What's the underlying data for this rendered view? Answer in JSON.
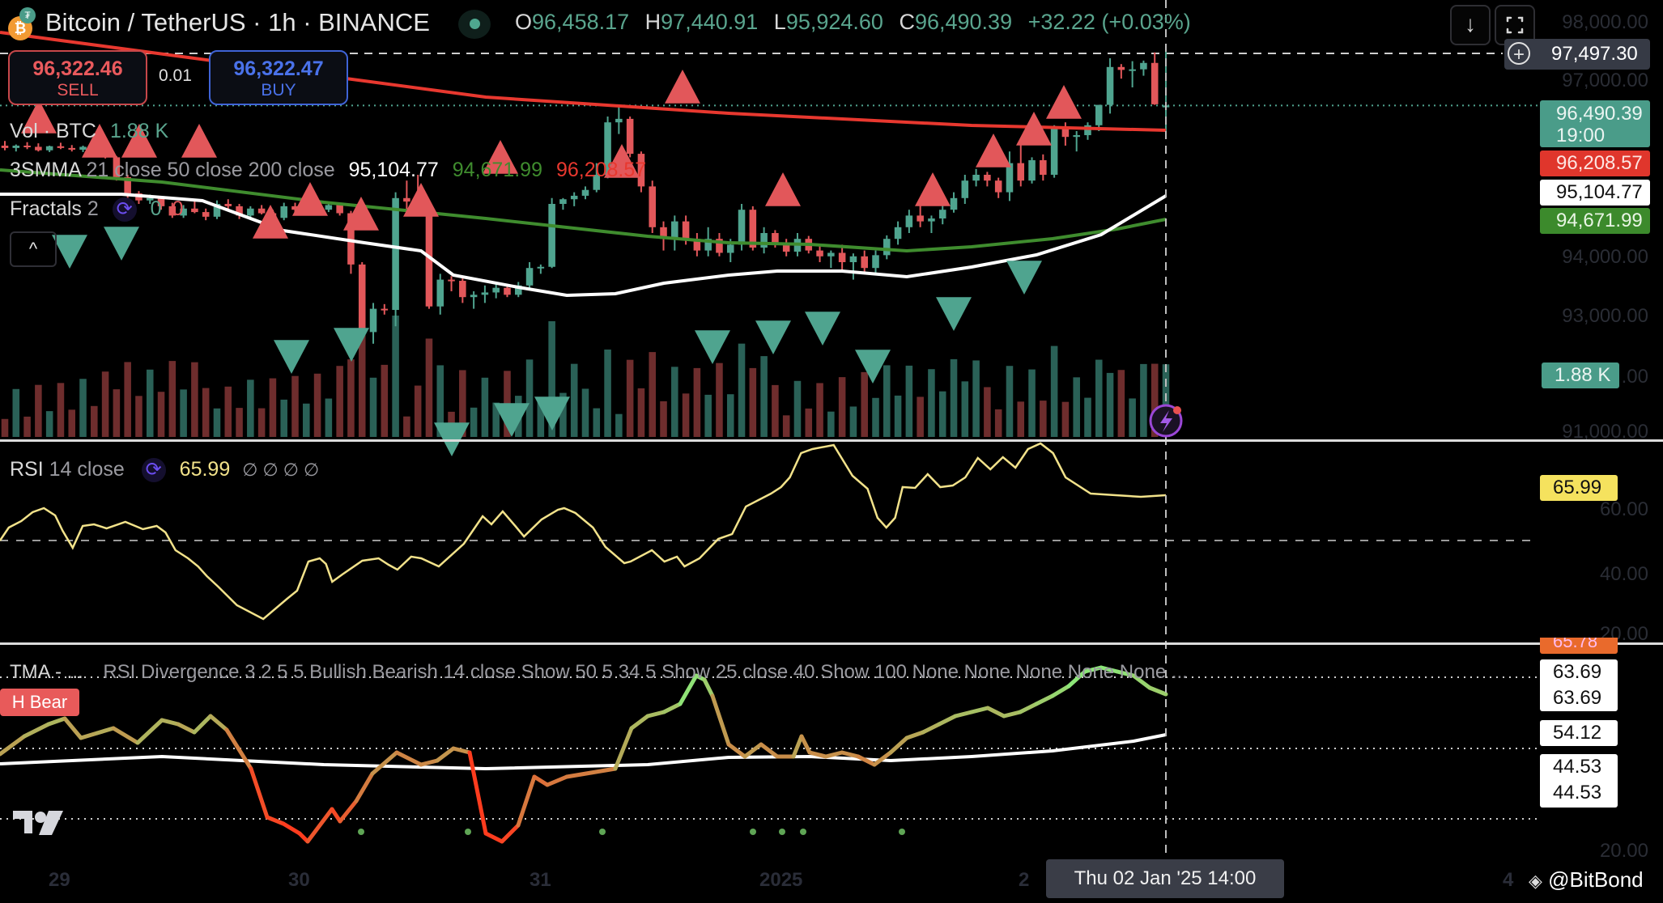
{
  "header": {
    "symbol_title": "Bitcoin / TetherUS · 1h · BINANCE",
    "base_icon": "bitcoin-icon",
    "quote_icon": "tether-icon",
    "market_status": "open",
    "ohlc": {
      "o_label": "O",
      "o": "96,458.17",
      "h_label": "H",
      "h": "97,440.91",
      "l_label": "L",
      "l": "95,924.60",
      "c_label": "C",
      "c": "96,490.39",
      "change": "+32.22 (+0.03%)"
    },
    "buttons": {
      "download_icon": "↓",
      "fullscreen_icon": "⛶"
    }
  },
  "trade": {
    "sell_price": "96,322.46",
    "sell_label": "SELL",
    "spread": "0.01",
    "buy_price": "96,322.47",
    "buy_label": "BUY"
  },
  "legends": {
    "volume": {
      "name": "Vol · BTC",
      "value": "1.88 K"
    },
    "smma": {
      "name": "3SMMA",
      "params": "21 close 50 close 200 close",
      "v1": "95,104.77",
      "v2": "94,671.99",
      "v3": "96,208.57"
    },
    "fractals": {
      "name": "Fractals",
      "param": "2",
      "v1": "0",
      "v2": "0"
    },
    "collapse": "^",
    "rsi": {
      "name": "RSI",
      "params": "14 close",
      "value": "65.99",
      "nulls": "∅ ∅ ∅ ∅"
    },
    "divergence": {
      "name": "TMA - ...",
      "params": "RSI Divergence 3 2 5 5 Bullish Bearish 14 close Show 50 5 34 5 Show 25 close 40 Show 100 None None None None None ..."
    }
  },
  "price_axis": {
    "ticks": [
      "98,000.00",
      "97,000.00",
      "94,000.00",
      "93,000.00",
      "91,000.00"
    ],
    "crosshair_price": "97,497.30",
    "last_price": "96,490.39",
    "countdown": "19:00",
    "smma200_tag": "96,208.57",
    "smma21_tag": "95,104.77",
    "smma50_tag": "94,671.99",
    "volume_tag": "1.88 K",
    "volume_tick_tail": ".00"
  },
  "rsi_axis": {
    "value_tag": "65.99",
    "ticks": [
      "60.00",
      "40.00",
      "20.00"
    ]
  },
  "div_axis": {
    "tags": [
      "65.78",
      "63.69",
      "63.69",
      "54.12",
      "44.53",
      "44.53"
    ],
    "ticks": [
      "20.00"
    ],
    "label": "H Bear"
  },
  "time_axis": {
    "labels": [
      "29",
      "30",
      "31",
      "2025",
      "2",
      "4"
    ],
    "crosshair_time": "Thu 02 Jan '25   14:00"
  },
  "watermark": "@BitBond",
  "colors": {
    "up": "#4fa48f",
    "down": "#e2575a",
    "smma21": "#ffffff",
    "smma50": "#3f8c2e",
    "smma200": "#e8382f",
    "rsi": "#f2e28a",
    "accent_purple": "#6b4df0"
  },
  "chart_data": {
    "type": "candlestick",
    "title": "Bitcoin / TetherUS · 1h · BINANCE",
    "ylim": [
      90800,
      98300
    ],
    "candles": [
      [
        95800,
        95880,
        95720,
        95760
      ],
      [
        95760,
        95820,
        95700,
        95800
      ],
      [
        95800,
        95860,
        95740,
        95780
      ],
      [
        95780,
        95840,
        95700,
        95720
      ],
      [
        95720,
        95800,
        95690,
        95790
      ],
      [
        95790,
        95850,
        95740,
        95760
      ],
      [
        95760,
        95810,
        95700,
        95730
      ],
      [
        95730,
        95800,
        95690,
        95780
      ],
      [
        95780,
        95830,
        95720,
        95740
      ],
      [
        95740,
        95760,
        95580,
        95600
      ],
      [
        95600,
        95620,
        95200,
        95260
      ],
      [
        95260,
        95300,
        94900,
        94980
      ],
      [
        94980,
        95020,
        94800,
        94860
      ],
      [
        94860,
        94960,
        94800,
        94900
      ],
      [
        94900,
        94920,
        94700,
        94760
      ],
      [
        94760,
        94820,
        94560,
        94600
      ],
      [
        94600,
        94780,
        94560,
        94720
      ],
      [
        94720,
        94860,
        94640,
        94660
      ],
      [
        94660,
        94720,
        94520,
        94580
      ],
      [
        94580,
        94860,
        94540,
        94800
      ],
      [
        94800,
        94880,
        94700,
        94760
      ],
      [
        94760,
        94800,
        94540,
        94600
      ],
      [
        94600,
        94760,
        94560,
        94720
      ],
      [
        94720,
        94780,
        94620,
        94640
      ],
      [
        94640,
        94700,
        94520,
        94560
      ],
      [
        94560,
        94820,
        94520,
        94760
      ],
      [
        94760,
        94820,
        94640,
        94700
      ],
      [
        94700,
        94780,
        94640,
        94740
      ],
      [
        94740,
        94800,
        94660,
        94700
      ],
      [
        94700,
        94820,
        94660,
        94780
      ],
      [
        94780,
        94800,
        94600,
        94640
      ],
      [
        94640,
        94680,
        93600,
        93760
      ],
      [
        93760,
        93800,
        92500,
        92600
      ],
      [
        92600,
        93100,
        92400,
        93000
      ],
      [
        93000,
        93080,
        92900,
        92980
      ],
      [
        92980,
        95000,
        92700,
        94900
      ],
      [
        94900,
        95200,
        94600,
        94840
      ],
      [
        94840,
        95300,
        94700,
        94760
      ],
      [
        94760,
        94800,
        93000,
        93040
      ],
      [
        93040,
        93600,
        92900,
        93500
      ],
      [
        93500,
        93560,
        93300,
        93480
      ],
      [
        93480,
        93520,
        93100,
        93200
      ],
      [
        93200,
        93300,
        93000,
        93240
      ],
      [
        93240,
        93400,
        93100,
        93280
      ],
      [
        93280,
        93420,
        93180,
        93360
      ],
      [
        93360,
        93400,
        93200,
        93240
      ],
      [
        93240,
        93460,
        93200,
        93400
      ],
      [
        93400,
        93800,
        93360,
        93700
      ],
      [
        93700,
        93760,
        93600,
        93720
      ],
      [
        93720,
        94900,
        93700,
        94800
      ],
      [
        94800,
        94900,
        94700,
        94880
      ],
      [
        94880,
        95000,
        94760,
        94940
      ],
      [
        94940,
        95100,
        94880,
        95040
      ],
      [
        95040,
        95500,
        95000,
        95300
      ],
      [
        95300,
        96300,
        95240,
        96200
      ],
      [
        96200,
        96500,
        96000,
        96260
      ],
      [
        96260,
        96300,
        95600,
        95660
      ],
      [
        95660,
        95700,
        95000,
        95100
      ],
      [
        95100,
        95200,
        94300,
        94400
      ],
      [
        94400,
        94500,
        94000,
        94200
      ],
      [
        94200,
        94600,
        94000,
        94500
      ],
      [
        94500,
        94600,
        94100,
        94200
      ],
      [
        94200,
        94300,
        93900,
        94000
      ],
      [
        94000,
        94400,
        93900,
        94200
      ],
      [
        94200,
        94300,
        93900,
        93960
      ],
      [
        93960,
        94200,
        93800,
        94100
      ],
      [
        94100,
        94800,
        94000,
        94700
      ],
      [
        94700,
        94760,
        94000,
        94050
      ],
      [
        94050,
        94400,
        93950,
        94300
      ],
      [
        94300,
        94350,
        94050,
        94100
      ],
      [
        94100,
        94200,
        93900,
        93980
      ],
      [
        93980,
        94300,
        93900,
        94200
      ],
      [
        94200,
        94250,
        93950,
        94000
      ],
      [
        94000,
        94100,
        93800,
        93900
      ],
      [
        93900,
        94000,
        93700,
        93960
      ],
      [
        93960,
        94100,
        93650,
        93800
      ],
      [
        93800,
        93950,
        93500,
        93900
      ],
      [
        93900,
        94000,
        93600,
        93700
      ],
      [
        93700,
        94000,
        93600,
        93920
      ],
      [
        93920,
        94260,
        93850,
        94200
      ],
      [
        94200,
        94500,
        94100,
        94400
      ],
      [
        94400,
        94700,
        94300,
        94600
      ],
      [
        94600,
        94800,
        94400,
        94500
      ],
      [
        94500,
        94600,
        94300,
        94550
      ],
      [
        94550,
        94800,
        94450,
        94700
      ],
      [
        94700,
        95000,
        94650,
        94900
      ],
      [
        94900,
        95300,
        94800,
        95200
      ],
      [
        95200,
        95400,
        95100,
        95300
      ],
      [
        95300,
        95350,
        95100,
        95200
      ],
      [
        95200,
        95250,
        94900,
        95000
      ],
      [
        95000,
        95700,
        94850,
        95500
      ],
      [
        95500,
        95880,
        95100,
        95200
      ],
      [
        95200,
        95600,
        95150,
        95550
      ],
      [
        95550,
        95650,
        95200,
        95300
      ],
      [
        95300,
        96150,
        95250,
        96100
      ],
      [
        96100,
        96200,
        95800,
        95950
      ],
      [
        95950,
        96050,
        95700,
        95980
      ],
      [
        95980,
        96200,
        95900,
        96150
      ],
      [
        96150,
        96500,
        96050,
        96500
      ],
      [
        96500,
        97300,
        96350,
        97150
      ],
      [
        97150,
        97200,
        96950,
        97100
      ],
      [
        97100,
        97250,
        96800,
        97110
      ],
      [
        97110,
        97260,
        97000,
        97220
      ],
      [
        97220,
        97400,
        96500,
        96510
      ],
      [
        96458,
        97441,
        95925,
        96490
      ]
    ],
    "volume_note": "Vol · BTC last 1.88 K",
    "smma": {
      "21": 95104.77,
      "50": 94671.99,
      "200": 96208.57
    },
    "rsi_last": 65.99,
    "divergence_levels": [
      65.78,
      63.69,
      63.69,
      54.12,
      44.53,
      44.53
    ]
  }
}
